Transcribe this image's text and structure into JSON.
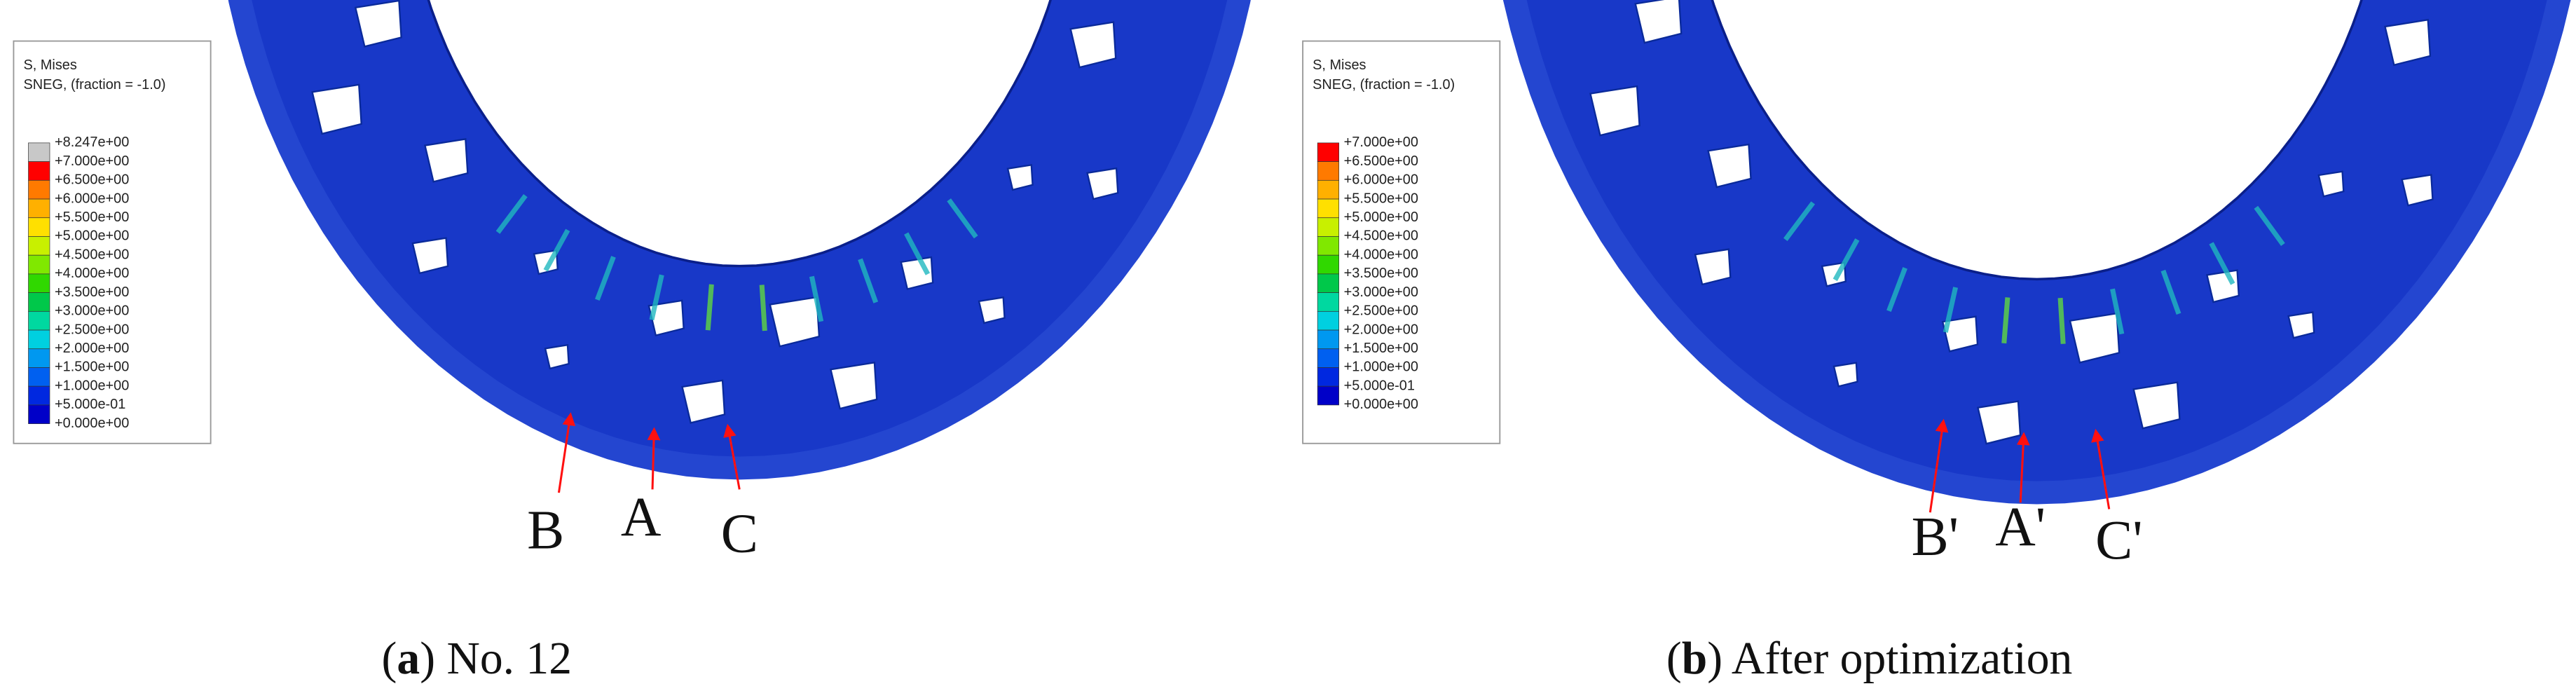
{
  "panels": [
    {
      "legend": {
        "title": [
          "S, Mises",
          "SNEG, (fraction = -1.0)"
        ],
        "levels": [
          "+8.247e+00",
          "+7.000e+00",
          "+6.500e+00",
          "+6.000e+00",
          "+5.500e+00",
          "+5.000e+00",
          "+4.500e+00",
          "+4.000e+00",
          "+3.500e+00",
          "+3.000e+00",
          "+2.500e+00",
          "+2.000e+00",
          "+1.500e+00",
          "+1.000e+00",
          "+5.000e-01",
          "+0.000e+00"
        ],
        "colors": [
          "#c8c8c8",
          "#ff0000",
          "#ff7a00",
          "#ffb000",
          "#ffe000",
          "#c8f000",
          "#80e800",
          "#30d800",
          "#00c84a",
          "#00d8a0",
          "#00d0e0",
          "#0098f0",
          "#0060f0",
          "#0028e0",
          "#0000c8"
        ]
      },
      "points": [
        "B",
        "A",
        "C"
      ],
      "caption": [
        "(",
        "a",
        ") No. 12"
      ]
    },
    {
      "legend": {
        "title": [
          "S, Mises",
          "SNEG, (fraction = -1.0)"
        ],
        "levels": [
          "+7.000e+00",
          "+6.500e+00",
          "+6.000e+00",
          "+5.500e+00",
          "+5.000e+00",
          "+4.500e+00",
          "+4.000e+00",
          "+3.500e+00",
          "+3.000e+00",
          "+2.500e+00",
          "+2.000e+00",
          "+1.500e+00",
          "+1.000e+00",
          "+5.000e-01",
          "+0.000e+00"
        ],
        "colors": [
          "#ff0000",
          "#ff7a00",
          "#ffb000",
          "#ffe000",
          "#c8f000",
          "#80e800",
          "#30d800",
          "#00c84a",
          "#00d8a0",
          "#00d0e0",
          "#0098f0",
          "#0060f0",
          "#0028e0",
          "#0000c8"
        ]
      },
      "points": [
        "B'",
        "A'",
        "C'"
      ],
      "caption": [
        "(",
        "b",
        ") After optimization"
      ]
    }
  ]
}
